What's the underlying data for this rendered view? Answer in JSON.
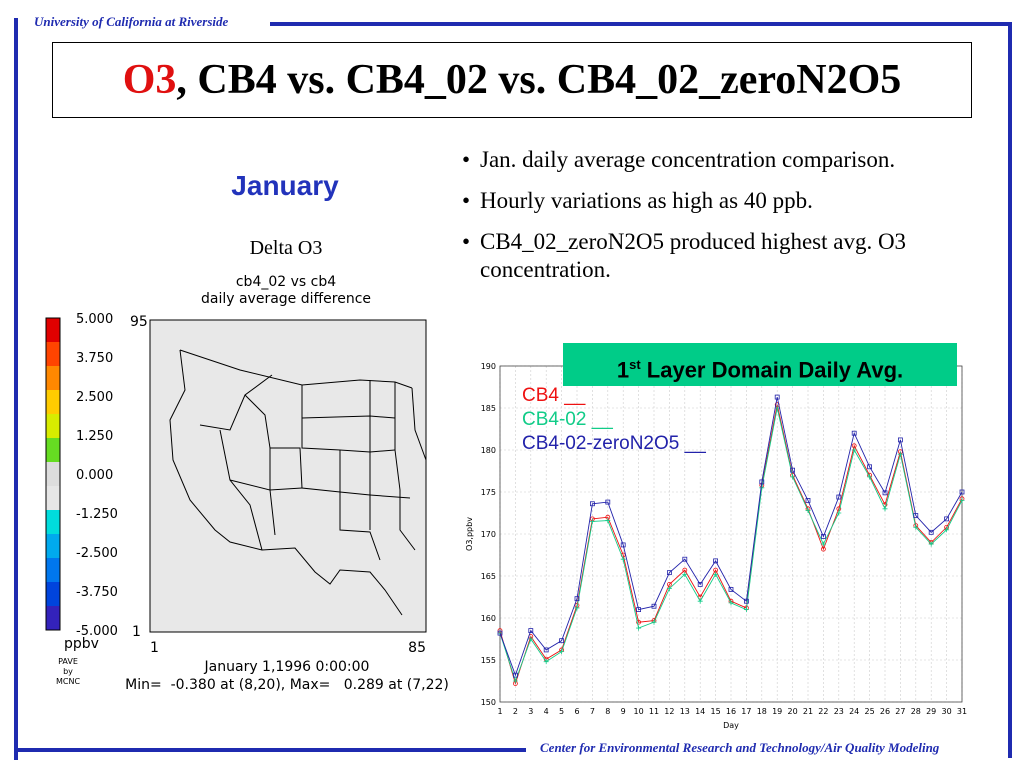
{
  "header": {
    "university": "University of California at Riverside"
  },
  "footer": {
    "center": "Center for Environmental Research and Technology/Air Quality Modeling"
  },
  "title": {
    "highlight": "O3",
    "rest": ", CB4 vs. CB4_02 vs. CB4_02_zeroN2O5"
  },
  "map_panel": {
    "month": "January",
    "plot_title": "Delta O3",
    "subtitle_line1": "cb4_02 vs cb4",
    "subtitle_line2": "daily average difference",
    "colorbar_ticks": [
      "5.000",
      "3.750",
      "2.500",
      "1.250",
      "0.000",
      "-1.250",
      "-2.500",
      "-3.750",
      "-5.000"
    ],
    "colorbar_unit": "ppbv",
    "pave_credit": [
      "PAVE",
      "by",
      "MCNC"
    ],
    "axis_y_top": "95",
    "axis_y_bottom": "1",
    "axis_x_left": "1",
    "axis_x_right": "85",
    "date_line": "January 1,1996 0:00:00",
    "minmax_line": "Min=  -0.380 at (8,20), Max=   0.289 at (7,22)",
    "colors": [
      "#e00000",
      "#ff4400",
      "#ff8800",
      "#ffcc00",
      "#d8ec00",
      "#66dd22",
      "#dddddd",
      "#e6e6e6",
      "#00dddd",
      "#00aaee",
      "#0077ee",
      "#0044dd",
      "#3322bb"
    ]
  },
  "bullets": [
    "Jan. daily average concentration comparison.",
    "Hourly variations as high as 40 ppb.",
    "CB4_02_zeroN2O5 produced highest avg. O3 concentration."
  ],
  "chart_banner": {
    "prefix": "1",
    "sup": "st",
    "text": " Layer Domain Daily Avg."
  },
  "legend": [
    {
      "label": "CB4 __",
      "color": "#ee1111"
    },
    {
      "label": "CB4-02 __",
      "color": "#11cc88"
    },
    {
      "label": "CB4-02-zeroN2O5 __",
      "color": "#2222aa"
    }
  ],
  "chart_data": {
    "type": "line",
    "xlabel": "Day",
    "ylabel": "O3,ppbv",
    "ylim": [
      150,
      190
    ],
    "xlim": [
      1,
      31
    ],
    "yticks": [
      150,
      155,
      160,
      165,
      170,
      175,
      180,
      185,
      190
    ],
    "x": [
      1,
      2,
      3,
      4,
      5,
      6,
      7,
      8,
      9,
      10,
      11,
      12,
      13,
      14,
      15,
      16,
      17,
      18,
      19,
      20,
      21,
      22,
      23,
      24,
      25,
      26,
      27,
      28,
      29,
      30,
      31
    ],
    "grid": true,
    "series": [
      {
        "name": "CB4",
        "color": "#ee1111",
        "marker": "o",
        "values": [
          158.5,
          152.2,
          157.8,
          155.1,
          156.2,
          161.5,
          171.8,
          172.0,
          167.5,
          159.5,
          159.7,
          164.0,
          165.7,
          162.5,
          165.7,
          162.0,
          161.2,
          175.8,
          185.4,
          177.0,
          173.0,
          168.2,
          173.0,
          180.5,
          177.0,
          173.5,
          179.8,
          171.0,
          169.0,
          170.8,
          174.2
        ]
      },
      {
        "name": "CB4-02",
        "color": "#11cc88",
        "marker": "+",
        "values": [
          158.2,
          152.5,
          157.5,
          154.8,
          156.0,
          161.2,
          171.5,
          171.6,
          167.0,
          158.8,
          159.5,
          163.5,
          165.2,
          162.0,
          165.2,
          161.8,
          161.0,
          175.5,
          185.0,
          176.8,
          172.8,
          168.8,
          172.5,
          180.0,
          176.8,
          173.0,
          179.5,
          170.8,
          168.8,
          170.5,
          174.0
        ]
      },
      {
        "name": "CB4-02-zeroN2O5",
        "color": "#2222aa",
        "marker": "s",
        "values": [
          158.2,
          153.2,
          158.5,
          156.2,
          157.3,
          162.3,
          173.6,
          173.8,
          168.7,
          161.0,
          161.4,
          165.4,
          167.0,
          164.0,
          166.8,
          163.4,
          162.0,
          176.2,
          186.3,
          177.6,
          174.0,
          169.7,
          174.4,
          182.0,
          178.0,
          174.9,
          181.2,
          172.2,
          170.2,
          171.8,
          175.0
        ]
      }
    ]
  }
}
